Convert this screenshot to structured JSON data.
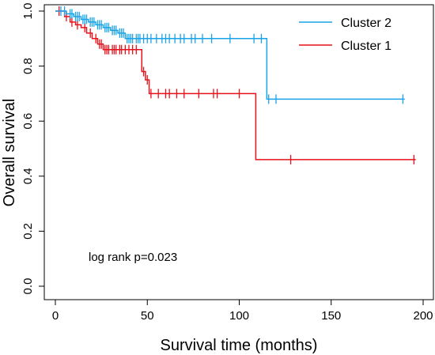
{
  "chart_data": {
    "type": "line",
    "xlabel": "Survival time (months)",
    "ylabel": "Overall survival",
    "xlim": [
      0,
      200
    ],
    "ylim": [
      0,
      1
    ],
    "x_ticks": [
      "0",
      "50",
      "100",
      "150",
      "200"
    ],
    "y_ticks": [
      "0.0",
      "0.2",
      "0.4",
      "0.6",
      "0.8",
      "1.0"
    ],
    "x_tick_values": [
      0,
      50,
      100,
      150,
      200
    ],
    "y_tick_values": [
      0,
      0.2,
      0.4,
      0.6,
      0.8,
      1.0
    ],
    "legend_position": "top-right",
    "annotation": "log rank p=0.023",
    "series": [
      {
        "name": "Cluster 2",
        "color": "#1aa3e8",
        "steps": [
          [
            0,
            1.0
          ],
          [
            6,
            0.99
          ],
          [
            10,
            0.98
          ],
          [
            14,
            0.97
          ],
          [
            18,
            0.96
          ],
          [
            22,
            0.95
          ],
          [
            26,
            0.94
          ],
          [
            30,
            0.93
          ],
          [
            34,
            0.92
          ],
          [
            38,
            0.9
          ],
          [
            115,
            0.68
          ],
          [
            190,
            0.68
          ]
        ],
        "censor": [
          3,
          5,
          8,
          9,
          11,
          12,
          13,
          15,
          16,
          17,
          19,
          20,
          21,
          23,
          24,
          25,
          27,
          28,
          29,
          31,
          32,
          33,
          35,
          36,
          37,
          39,
          40,
          41,
          42,
          44,
          45,
          46,
          48,
          50,
          52,
          55,
          58,
          60,
          62,
          65,
          68,
          70,
          74,
          76,
          80,
          85,
          95,
          108,
          112,
          116,
          120,
          189
        ]
      },
      {
        "name": "Cluster 1",
        "color": "#e8101a",
        "steps": [
          [
            0,
            1.0
          ],
          [
            5,
            0.98
          ],
          [
            8,
            0.96
          ],
          [
            11,
            0.95
          ],
          [
            14,
            0.94
          ],
          [
            17,
            0.92
          ],
          [
            20,
            0.9
          ],
          [
            23,
            0.88
          ],
          [
            26,
            0.86
          ],
          [
            47,
            0.78
          ],
          [
            49,
            0.75
          ],
          [
            51,
            0.7
          ],
          [
            109,
            0.46
          ],
          [
            196,
            0.46
          ]
        ],
        "censor": [
          2,
          6,
          9,
          12,
          16,
          19,
          22,
          24,
          25,
          27,
          28,
          29,
          31,
          32,
          33,
          35,
          36,
          38,
          40,
          42,
          44,
          48,
          50,
          52,
          56,
          60,
          62,
          66,
          70,
          78,
          86,
          88,
          100,
          128,
          195
        ]
      }
    ]
  }
}
